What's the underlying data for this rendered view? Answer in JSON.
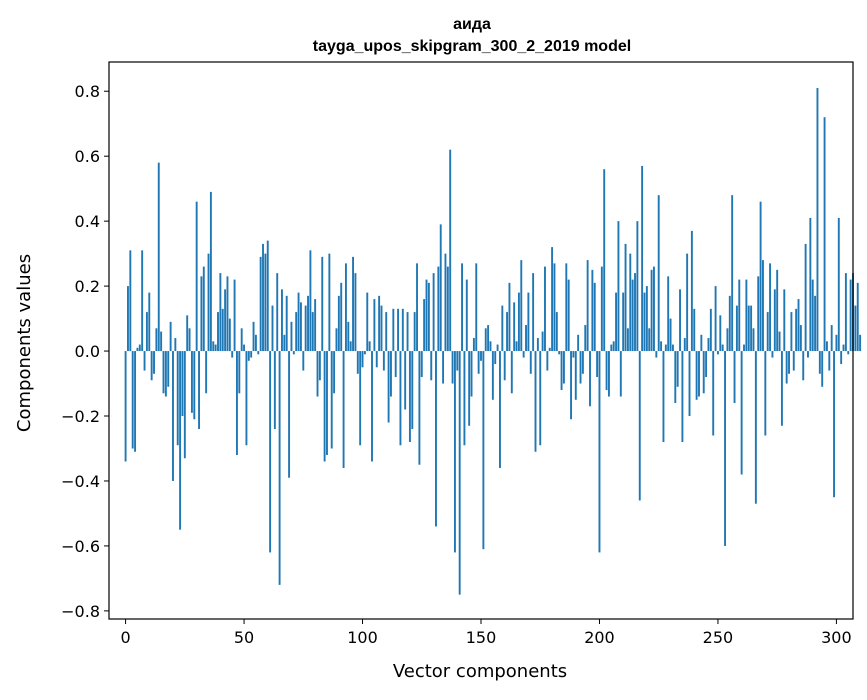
{
  "chart_data": {
    "type": "bar",
    "title": "аида",
    "subtitle": "tayga_upos_skipgram_300_2_2019 model",
    "xlabel": "Vector components",
    "ylabel": "Components values",
    "xlim": [
      -7,
      307
    ],
    "ylim": [
      -0.825,
      0.89
    ],
    "xticks": [
      0,
      50,
      100,
      150,
      200,
      250,
      300
    ],
    "xtick_labels": [
      "0",
      "50",
      "100",
      "150",
      "200",
      "250",
      "300"
    ],
    "yticks": [
      0.8,
      0.6,
      0.4,
      0.2,
      0.0,
      -0.2,
      -0.4,
      -0.6,
      -0.8
    ],
    "ytick_labels": [
      "0.8",
      "0.6",
      "0.4",
      "0.2",
      "0.0",
      "−0.2",
      "−0.4",
      "−0.6",
      "−0.8"
    ],
    "bar_color": "#1f77b4",
    "values": [
      -0.34,
      0.2,
      0.31,
      -0.3,
      -0.31,
      0.01,
      0.02,
      0.31,
      -0.06,
      0.12,
      0.18,
      -0.09,
      -0.07,
      0.07,
      0.58,
      0.06,
      -0.13,
      -0.14,
      -0.11,
      0.09,
      -0.4,
      0.04,
      -0.29,
      -0.55,
      -0.2,
      -0.33,
      0.11,
      0.07,
      -0.19,
      -0.21,
      0.46,
      -0.24,
      0.23,
      0.26,
      -0.13,
      0.3,
      0.49,
      0.03,
      0.02,
      0.12,
      0.24,
      0.13,
      0.19,
      0.23,
      0.1,
      -0.02,
      0.22,
      -0.32,
      -0.13,
      0.07,
      0.02,
      -0.29,
      -0.03,
      -0.02,
      0.09,
      0.05,
      -0.01,
      0.29,
      0.33,
      0.3,
      0.34,
      -0.62,
      0.14,
      -0.24,
      0.24,
      -0.72,
      0.19,
      0.05,
      0.17,
      -0.39,
      0.09,
      -0.01,
      0.12,
      0.18,
      0.15,
      -0.06,
      0.14,
      0.17,
      0.31,
      0.12,
      0.16,
      -0.14,
      -0.09,
      0.29,
      -0.34,
      -0.32,
      0.3,
      -0.3,
      -0.13,
      0.07,
      0.17,
      0.21,
      -0.36,
      0.27,
      0.09,
      0.03,
      0.29,
      0.24,
      -0.07,
      -0.29,
      -0.05,
      -0.01,
      0.18,
      0.03,
      -0.34,
      0.16,
      -0.05,
      0.17,
      0.14,
      -0.06,
      0.12,
      -0.22,
      -0.14,
      0.13,
      -0.08,
      0.13,
      -0.29,
      0.13,
      -0.18,
      0.12,
      -0.28,
      -0.24,
      0.12,
      0.27,
      -0.35,
      -0.08,
      0.16,
      0.22,
      0.21,
      -0.09,
      0.24,
      -0.54,
      0.26,
      0.39,
      -0.1,
      0.3,
      0.26,
      0.62,
      -0.1,
      -0.62,
      -0.06,
      -0.75,
      0.27,
      -0.29,
      0.22,
      -0.23,
      -0.14,
      0.04,
      0.27,
      -0.07,
      -0.03,
      -0.61,
      0.07,
      0.08,
      0.03,
      -0.15,
      -0.04,
      0.02,
      -0.36,
      0.14,
      -0.09,
      0.12,
      0.21,
      -0.13,
      0.15,
      0.03,
      0.18,
      0.28,
      -0.02,
      0.08,
      0.18,
      -0.07,
      0.24,
      -0.31,
      0.04,
      -0.29,
      0.06,
      0.26,
      -0.06,
      0.01,
      0.32,
      0.27,
      0.12,
      -0.01,
      -0.12,
      -0.1,
      0.27,
      0.22,
      -0.21,
      -0.02,
      -0.15,
      0.05,
      -0.1,
      -0.07,
      0.08,
      0.28,
      -0.17,
      0.25,
      0.21,
      -0.08,
      -0.62,
      0.26,
      0.56,
      -0.12,
      -0.14,
      0.02,
      0.03,
      0.18,
      0.4,
      -0.14,
      0.18,
      0.33,
      0.07,
      0.3,
      0.22,
      0.24,
      0.4,
      -0.46,
      0.57,
      0.18,
      0.2,
      0.07,
      0.25,
      0.26,
      -0.02,
      0.48,
      0.03,
      -0.28,
      0.02,
      0.23,
      0.1,
      0.02,
      -0.16,
      -0.11,
      0.19,
      -0.28,
      0.04,
      0.3,
      -0.2,
      0.37,
      0.13,
      -0.15,
      -0.14,
      0.05,
      -0.13,
      -0.08,
      0.04,
      0.13,
      -0.26,
      0.2,
      -0.01,
      0.11,
      0.02,
      -0.6,
      0.07,
      0.17,
      0.48,
      -0.16,
      0.14,
      0.22,
      -0.38,
      0.02,
      0.22,
      0.14,
      0.14,
      0.07,
      -0.47,
      0.23,
      0.46,
      0.28,
      -0.26,
      0.12,
      0.27,
      -0.02,
      0.19,
      0.25,
      0.06,
      -0.23,
      0.19,
      -0.1,
      -0.07,
      0.12,
      -0.06,
      0.13,
      0.16,
      0.08,
      -0.09,
      0.33,
      -0.02,
      0.41,
      0.22,
      0.17,
      0.81,
      -0.07,
      -0.11,
      0.72,
      0.03,
      -0.06,
      0.08,
      -0.45,
      0.05,
      0.41,
      -0.04,
      0.02,
      0.24,
      -0.01,
      0.22,
      0.24,
      0.14,
      0.21,
      0.05
    ]
  }
}
